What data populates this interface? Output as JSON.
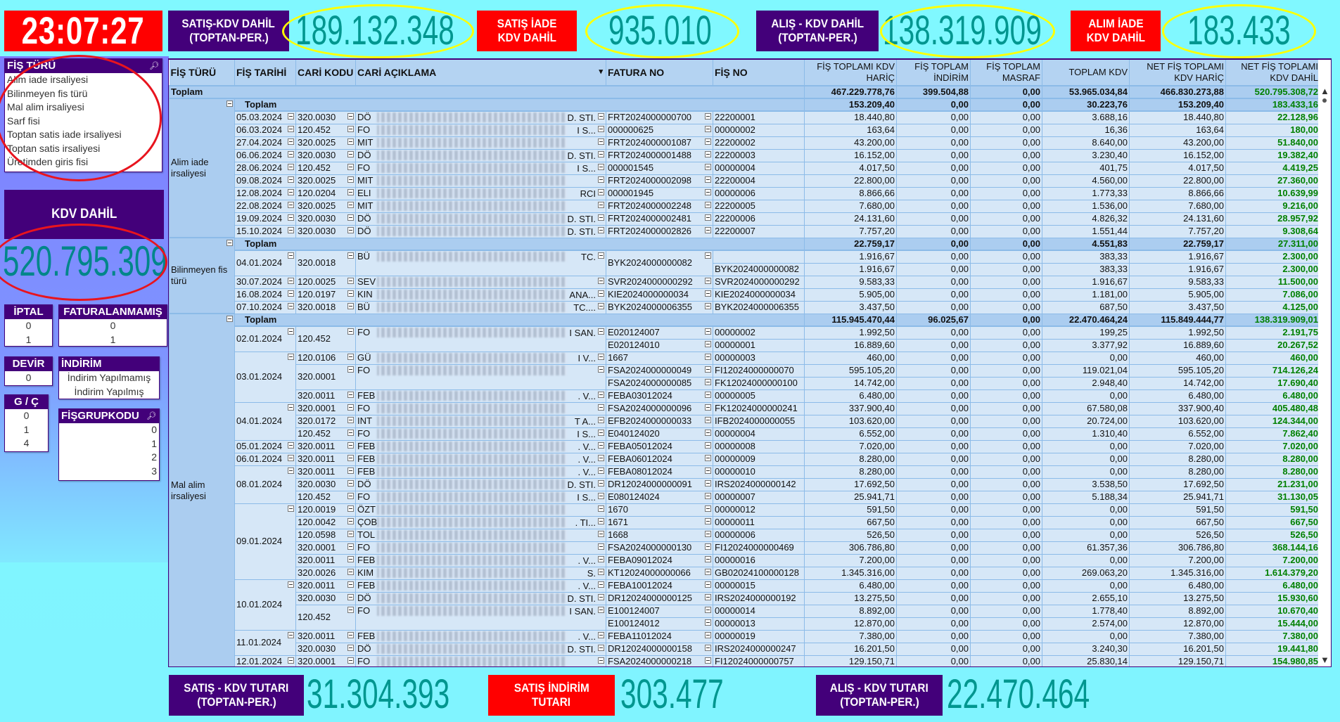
{
  "header": {
    "clock": "23:07:27",
    "kpis": [
      {
        "label1": "SATIŞ-KDV DAHİL",
        "label2": "(TOPTAN-PER.)",
        "value": "189.132.348"
      },
      {
        "label1": "SATIŞ İADE",
        "label2": "KDV DAHİL",
        "value": "935.010"
      },
      {
        "label1": "ALIŞ - KDV DAHİL",
        "label2": "(TOPTAN-PER.)",
        "value": "138.319.909"
      },
      {
        "label1": "ALIM İADE",
        "label2": "KDV DAHİL",
        "value": "183.433"
      }
    ]
  },
  "left": {
    "fis_turu": {
      "title": "FİŞ TÜRÜ",
      "items": [
        "Alim iade irsaliyesi",
        "Bilinmeyen fis türü",
        "Mal alim irsaliyesi",
        "Sarf fisi",
        "Toptan satis iade irsaliyesi",
        "Toptan satis irsaliyesi",
        "Üretimden giris fisi"
      ]
    },
    "kdv_dahil": {
      "label": "KDV DAHİL",
      "value": "520.795.309"
    },
    "iptal": {
      "title": "İPTAL",
      "items": [
        "0",
        "1"
      ]
    },
    "faturalanmamis": {
      "title": "FATURALANMAMIŞ",
      "items": [
        "0",
        "1"
      ]
    },
    "devir": {
      "title": "DEVİR",
      "items": [
        "0"
      ]
    },
    "indirim": {
      "title": "İNDİRİM",
      "items": [
        "İndirim Yapılmamış",
        "İndirim Yapılmış"
      ]
    },
    "gc": {
      "title": "G / Ç",
      "items": [
        "0",
        "1",
        "4"
      ]
    },
    "fisgrupkodu": {
      "title": "FİŞGRUPKODU",
      "items": [
        "0",
        "1",
        "2",
        "3"
      ]
    }
  },
  "footer": [
    {
      "label1": "SATIŞ - KDV TUTARI",
      "label2": "(TOPTAN-PER.)",
      "value": "31.304.393"
    },
    {
      "label1": "SATIŞ İNDİRİM",
      "label2": "TUTARI",
      "value": "303.477"
    },
    {
      "label1": "ALIŞ - KDV TUTARI",
      "label2": "(TOPTAN-PER.)",
      "value": "22.470.464"
    }
  ],
  "colors": {
    "accent_purple": "#43007a",
    "accent_red": "#ff0000",
    "value_teal": "#00968f",
    "positive_green": "#008000"
  },
  "table": {
    "columns": [
      "FİŞ TÜRÜ",
      "FİŞ TARİHİ",
      "CARİ KODU",
      "CARİ AÇIKLAMA",
      "FATURA NO",
      "FİŞ NO",
      "FİŞ TOPLAMI KDV HARİÇ",
      "FİŞ TOPLAM İNDİRİM",
      "FİŞ TOPLAM MASRAF",
      "TOPLAM KDV",
      "NET FİŞ TOPLAMI KDV HARİÇ",
      "NET FİŞ TOPLAMI KDV DAHİL"
    ],
    "total_label": "Toplam",
    "grand_total": [
      "467.229.778,76",
      "399.504,88",
      "0,00",
      "53.965.034,84",
      "466.830.273,88",
      "520.795.308,72"
    ],
    "groups": [
      {
        "fis_turu": "Alim iade irsaliyesi",
        "total": [
          "153.209,40",
          "0,00",
          "0,00",
          "30.223,76",
          "153.209,40",
          "183.433,16"
        ],
        "rows": [
          [
            "05.03.2024",
            "320.0030",
            "DÖ",
            "D. STI.",
            "FRT2024000000700",
            "22200001",
            "18.440,80",
            "0,00",
            "0,00",
            "3.688,16",
            "18.440,80",
            "22.128,96"
          ],
          [
            "06.03.2024",
            "120.452",
            "FO",
            "I S...",
            "000000625",
            "00000002",
            "163,64",
            "0,00",
            "0,00",
            "16,36",
            "163,64",
            "180,00"
          ],
          [
            "27.04.2024",
            "320.0025",
            "MIT",
            "",
            "FRT2024000001087",
            "22200002",
            "43.200,00",
            "0,00",
            "0,00",
            "8.640,00",
            "43.200,00",
            "51.840,00"
          ],
          [
            "06.06.2024",
            "320.0030",
            "DÖ",
            "D. STI.",
            "FRT2024000001488",
            "22200003",
            "16.152,00",
            "0,00",
            "0,00",
            "3.230,40",
            "16.152,00",
            "19.382,40"
          ],
          [
            "28.06.2024",
            "120.452",
            "FO",
            "I S...",
            "000001545",
            "00000004",
            "4.017,50",
            "0,00",
            "0,00",
            "401,75",
            "4.017,50",
            "4.419,25"
          ],
          [
            "09.08.2024",
            "320.0025",
            "MIT",
            "",
            "FRT2024000002098",
            "22200004",
            "22.800,00",
            "0,00",
            "0,00",
            "4.560,00",
            "22.800,00",
            "27.360,00"
          ],
          [
            "12.08.2024",
            "120.0204",
            "ELI",
            "RCI",
            "000001945",
            "00000006",
            "8.866,66",
            "0,00",
            "0,00",
            "1.773,33",
            "8.866,66",
            "10.639,99"
          ],
          [
            "22.08.2024",
            "320.0025",
            "MIT",
            "",
            "FRT2024000002248",
            "22200005",
            "7.680,00",
            "0,00",
            "0,00",
            "1.536,00",
            "7.680,00",
            "9.216,00"
          ],
          [
            "19.09.2024",
            "320.0030",
            "DÖ",
            "D. STI.",
            "FRT2024000002481",
            "22200006",
            "24.131,60",
            "0,00",
            "0,00",
            "4.826,32",
            "24.131,60",
            "28.957,92"
          ],
          [
            "15.10.2024",
            "320.0030",
            "DÖ",
            "D. STI.",
            "FRT2024000002826",
            "22200007",
            "7.757,20",
            "0,00",
            "0,00",
            "1.551,44",
            "7.757,20",
            "9.308,64"
          ]
        ]
      },
      {
        "fis_turu": "Bilinmeyen fis türü",
        "total": [
          "22.759,17",
          "0,00",
          "0,00",
          "4.551,83",
          "22.759,17",
          "27.311,00"
        ],
        "rows": [
          [
            "04.01.2024",
            "320.0018",
            "BÜ",
            "TC.",
            "BYK2024000000082",
            "",
            "1.916,67",
            "0,00",
            "0,00",
            "383,33",
            "1.916,67",
            "2.300,00"
          ],
          [
            "04.01.2024",
            "320.0018",
            "BÜ",
            "TC.",
            "BYK2024000000082",
            "BYK2024000000082",
            "1.916,67",
            "0,00",
            "0,00",
            "383,33",
            "1.916,67",
            "2.300,00"
          ],
          [
            "30.07.2024",
            "120.0025",
            "SEV",
            "",
            "SVR2024000000292",
            "SVR2024000000292",
            "9.583,33",
            "0,00",
            "0,00",
            "1.916,67",
            "9.583,33",
            "11.500,00"
          ],
          [
            "16.08.2024",
            "120.0197",
            "KIN",
            "ANA...",
            "KIE2024000000034",
            "KIE2024000000034",
            "5.905,00",
            "0,00",
            "0,00",
            "1.181,00",
            "5.905,00",
            "7.086,00"
          ],
          [
            "07.10.2024",
            "320.0018",
            "BÜ",
            "TC....",
            "BYK2024000006355",
            "BYK2024000006355",
            "3.437,50",
            "0,00",
            "0,00",
            "687,50",
            "3.437,50",
            "4.125,00"
          ]
        ]
      },
      {
        "fis_turu": "Mal alim irsaliyesi",
        "total": [
          "115.945.470,44",
          "96.025,67",
          "0,00",
          "22.470.464,24",
          "115.849.444,77",
          "138.319.909,01"
        ],
        "rows": [
          [
            "02.01.2024",
            "120.452",
            "FO",
            "I SAN.",
            "E020124007",
            "00000002",
            "1.992,50",
            "0,00",
            "0,00",
            "199,25",
            "1.992,50",
            "2.191,75"
          ],
          [
            "02.01.2024",
            "120.452",
            "FO",
            "I SAN.",
            "E020124010",
            "00000001",
            "16.889,60",
            "0,00",
            "0,00",
            "3.377,92",
            "16.889,60",
            "20.267,52"
          ],
          [
            "03.01.2024",
            "120.0106",
            "GÜ",
            "I V...",
            "1667",
            "00000003",
            "460,00",
            "0,00",
            "0,00",
            "0,00",
            "460,00",
            "460,00"
          ],
          [
            "03.01.2024",
            "320.0001",
            "FO",
            "",
            "FSA2024000000049",
            "FI12024000000070",
            "595.105,20",
            "0,00",
            "0,00",
            "119.021,04",
            "595.105,20",
            "714.126,24"
          ],
          [
            "03.01.2024",
            "320.0001",
            "FO",
            "",
            "FSA2024000000085",
            "FK12024000000100",
            "14.742,00",
            "0,00",
            "0,00",
            "2.948,40",
            "14.742,00",
            "17.690,40"
          ],
          [
            "03.01.2024",
            "320.0011",
            "FEB",
            ". V...",
            "FEBA03012024",
            "00000005",
            "6.480,00",
            "0,00",
            "0,00",
            "0,00",
            "6.480,00",
            "6.480,00"
          ],
          [
            "04.01.2024",
            "320.0001",
            "FO",
            "",
            "FSA2024000000096",
            "FK12024000000241",
            "337.900,40",
            "0,00",
            "0,00",
            "67.580,08",
            "337.900,40",
            "405.480,48"
          ],
          [
            "04.01.2024",
            "320.0172",
            "INT",
            "T A...",
            "EFB2024000000033",
            "IFB2024000000055",
            "103.620,00",
            "0,00",
            "0,00",
            "20.724,00",
            "103.620,00",
            "124.344,00"
          ],
          [
            "04.01.2024",
            "120.452",
            "FO",
            "I S...",
            "E040124020",
            "00000004",
            "6.552,00",
            "0,00",
            "0,00",
            "1.310,40",
            "6.552,00",
            "7.862,40"
          ],
          [
            "05.01.2024",
            "320.0011",
            "FEB",
            ". V...",
            "FEBA05012024",
            "00000008",
            "7.020,00",
            "0,00",
            "0,00",
            "0,00",
            "7.020,00",
            "7.020,00"
          ],
          [
            "06.01.2024",
            "320.0011",
            "FEB",
            ". V...",
            "FEBA06012024",
            "00000009",
            "8.280,00",
            "0,00",
            "0,00",
            "0,00",
            "8.280,00",
            "8.280,00"
          ],
          [
            "08.01.2024",
            "320.0011",
            "FEB",
            ". V...",
            "FEBA08012024",
            "00000010",
            "8.280,00",
            "0,00",
            "0,00",
            "0,00",
            "8.280,00",
            "8.280,00"
          ],
          [
            "08.01.2024",
            "320.0030",
            "DÖ",
            "D. STI.",
            "DR12024000000091",
            "IRS2024000000142",
            "17.692,50",
            "0,00",
            "0,00",
            "3.538,50",
            "17.692,50",
            "21.231,00"
          ],
          [
            "08.01.2024",
            "120.452",
            "FO",
            "I S...",
            "E080124024",
            "00000007",
            "25.941,71",
            "0,00",
            "0,00",
            "5.188,34",
            "25.941,71",
            "31.130,05"
          ],
          [
            "09.01.2024",
            "120.0019",
            "ÖZT",
            "",
            "1670",
            "00000012",
            "591,50",
            "0,00",
            "0,00",
            "0,00",
            "591,50",
            "591,50"
          ],
          [
            "09.01.2024",
            "120.0042",
            "ÇOB",
            ". TI...",
            "1671",
            "00000011",
            "667,50",
            "0,00",
            "0,00",
            "0,00",
            "667,50",
            "667,50"
          ],
          [
            "09.01.2024",
            "120.0598",
            "TOL",
            "",
            "1668",
            "00000006",
            "526,50",
            "0,00",
            "0,00",
            "0,00",
            "526,50",
            "526,50"
          ],
          [
            "09.01.2024",
            "320.0001",
            "FO",
            "",
            "FSA2024000000130",
            "FI12024000000469",
            "306.786,80",
            "0,00",
            "0,00",
            "61.357,36",
            "306.786,80",
            "368.144,16"
          ],
          [
            "09.01.2024",
            "320.0011",
            "FEB",
            ". V...",
            "FEBA09012024",
            "00000016",
            "7.200,00",
            "0,00",
            "0,00",
            "0,00",
            "7.200,00",
            "7.200,00"
          ],
          [
            "09.01.2024",
            "320.0026",
            "KIM",
            "S.",
            "KT12024000000066",
            "GB02024100000128",
            "1.345.316,00",
            "0,00",
            "0,00",
            "269.063,20",
            "1.345.316,00",
            "1.614.379,20"
          ],
          [
            "10.01.2024",
            "320.0011",
            "FEB",
            ". V...",
            "FEBA10012024",
            "00000015",
            "6.480,00",
            "0,00",
            "0,00",
            "0,00",
            "6.480,00",
            "6.480,00"
          ],
          [
            "10.01.2024",
            "320.0030",
            "DÖ",
            "D. STI.",
            "DR12024000000125",
            "IRS2024000000192",
            "13.275,50",
            "0,00",
            "0,00",
            "2.655,10",
            "13.275,50",
            "15.930,60"
          ],
          [
            "10.01.2024",
            "120.452",
            "FO",
            "I SAN.",
            "E100124007",
            "00000014",
            "8.892,00",
            "0,00",
            "0,00",
            "1.778,40",
            "8.892,00",
            "10.670,40"
          ],
          [
            "10.01.2024",
            "120.452",
            "FO",
            "I SAN.",
            "E100124012",
            "00000013",
            "12.870,00",
            "0,00",
            "0,00",
            "2.574,00",
            "12.870,00",
            "15.444,00"
          ],
          [
            "11.01.2024",
            "320.0011",
            "FEB",
            ". V...",
            "FEBA11012024",
            "00000019",
            "7.380,00",
            "0,00",
            "0,00",
            "0,00",
            "7.380,00",
            "7.380,00"
          ],
          [
            "11.01.2024",
            "320.0030",
            "DÖ",
            "D. STI.",
            "DR12024000000158",
            "IRS2024000000247",
            "16.201,50",
            "0,00",
            "0,00",
            "3.240,30",
            "16.201,50",
            "19.441,80"
          ],
          [
            "12.01.2024",
            "320.0001",
            "FO",
            "",
            "FSA2024000000218",
            "FI12024000000757",
            "129.150,71",
            "0,00",
            "0,00",
            "25.830,14",
            "129.150,71",
            "154.980,85"
          ]
        ]
      }
    ]
  }
}
